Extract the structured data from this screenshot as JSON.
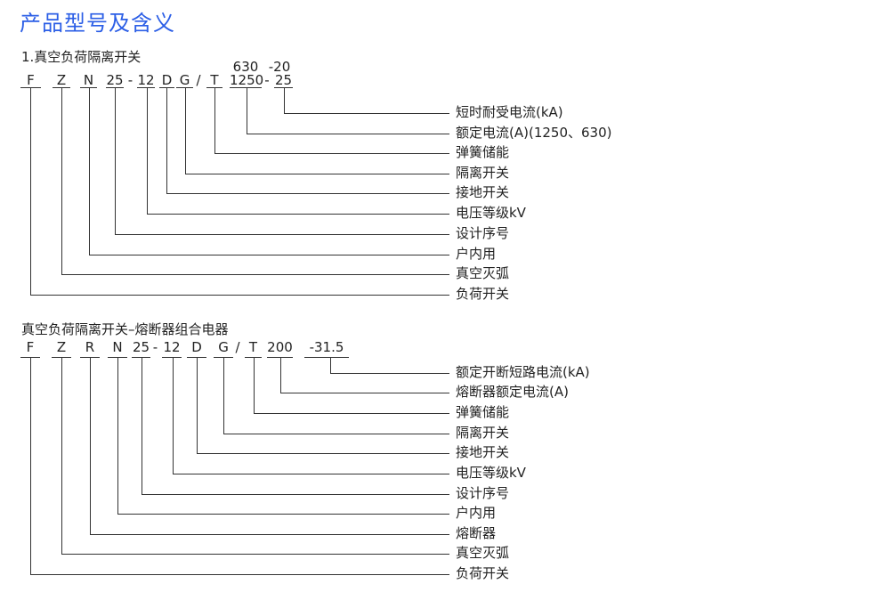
{
  "title": "产品型号及含义",
  "sections": [
    {
      "heading": "1.真空负荷隔离开关",
      "codes": [
        "F",
        "Z",
        "N",
        "25",
        "-",
        "12",
        "D",
        "G",
        "/",
        "T",
        "1250",
        "-",
        "25"
      ],
      "upper_codes": [
        "630",
        "-20"
      ],
      "labels": [
        "短时耐受电流(kA)",
        "额定电流(A)(1250、630)",
        "弹簧储能",
        "隔离开关",
        "接地开关",
        "电压等级kV",
        "设计序号",
        "户内用",
        "真空灭弧",
        "负荷开关"
      ]
    },
    {
      "heading": "真空负荷隔离开关–熔断器组合电器",
      "codes": [
        "F",
        "Z",
        "R",
        "N",
        "25",
        "-",
        "12",
        "D",
        "G",
        "/",
        "T",
        "200",
        "-31.5"
      ],
      "labels": [
        "额定开断短路电流(kA)",
        "熔断器额定电流(A)",
        "弹簧储能",
        "隔离开关",
        "接地开关",
        "电压等级kV",
        "设计序号",
        "户内用",
        "熔断器",
        "真空灭弧",
        "负荷开关"
      ]
    }
  ],
  "colors": {
    "title": "#2b5ee6",
    "text": "#222222",
    "lines": "#333333"
  }
}
